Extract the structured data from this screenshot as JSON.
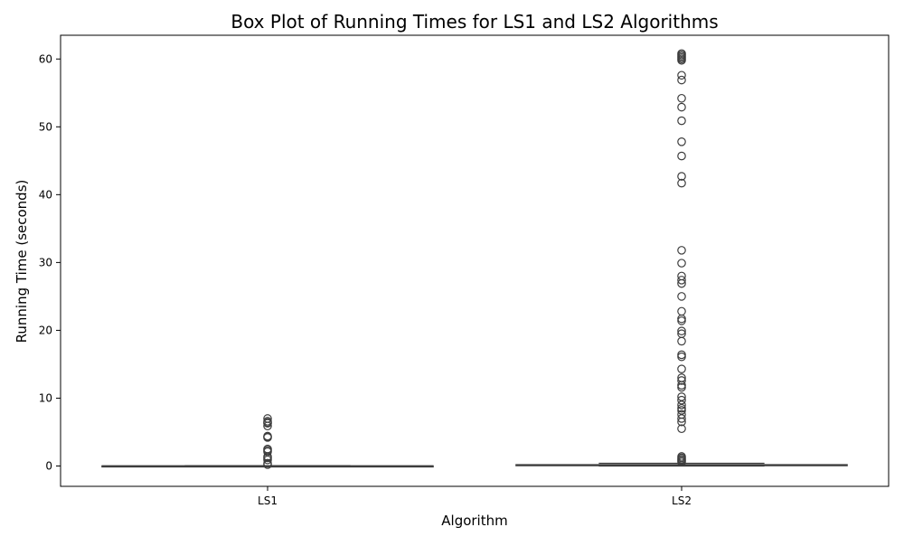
{
  "chart_data": {
    "type": "box",
    "title": "Box Plot of Running Times for LS1 and LS2 Algorithms",
    "xlabel": "Algorithm",
    "ylabel": "Running Time (seconds)",
    "ylim": [
      -3,
      63.5
    ],
    "yticks": [
      0,
      10,
      20,
      30,
      40,
      50,
      60
    ],
    "categories": [
      "LS1",
      "LS2"
    ],
    "grid": false,
    "legend": false,
    "box_fill": "#ffffff",
    "line_color": "#3d3d3d",
    "series": [
      {
        "category": "LS1",
        "whisker_low": 0.0,
        "q1": 0.0,
        "median": 0.0,
        "q3": 0.02,
        "whisker_high": 0.05,
        "outliers": [
          7.0,
          6.6,
          6.4,
          6.3,
          5.9,
          4.4,
          4.3,
          4.2,
          2.5,
          2.3,
          2.1,
          1.4,
          1.2,
          0.9,
          0.4,
          0.2
        ]
      },
      {
        "category": "LS2",
        "whisker_low": 0.0,
        "q1": 0.05,
        "median": 0.1,
        "q3": 0.2,
        "whisker_high": 0.4,
        "outliers": [
          60.8,
          60.6,
          60.4,
          60.2,
          60.0,
          59.8,
          57.6,
          56.9,
          54.2,
          52.9,
          50.9,
          47.8,
          45.7,
          42.7,
          41.7,
          31.8,
          29.9,
          28.0,
          27.4,
          26.9,
          25.0,
          22.8,
          21.7,
          21.4,
          19.9,
          19.5,
          18.4,
          16.4,
          16.1,
          14.3,
          13.0,
          12.6,
          11.9,
          11.6,
          10.2,
          9.7,
          9.0,
          8.5,
          8.2,
          7.6,
          7.0,
          6.5,
          5.5,
          1.4,
          1.2,
          1.0,
          0.8,
          0.6
        ]
      }
    ]
  }
}
